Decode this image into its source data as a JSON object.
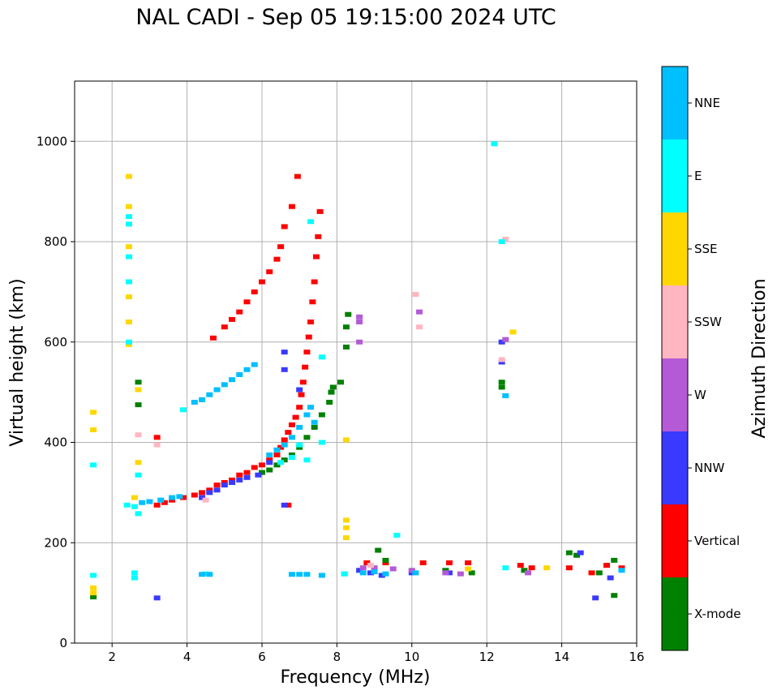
{
  "chart_data": {
    "type": "scatter",
    "title": "NAL CADI - Sep 05 19:15:00 2024 UTC",
    "xlabel": "Frequency (MHz)",
    "ylabel": "Virtual height (km)",
    "xlim": [
      1,
      16
    ],
    "ylim": [
      0,
      1120
    ],
    "xticks": [
      2,
      4,
      6,
      8,
      10,
      12,
      14,
      16
    ],
    "yticks": [
      0,
      200,
      400,
      600,
      800,
      1000
    ],
    "grid": true,
    "colorbar": {
      "label": "Azimuth Direction",
      "categories": [
        {
          "name": "X-mode",
          "color": "#008000"
        },
        {
          "name": "Vertical",
          "color": "#ff0000"
        },
        {
          "name": "NNW",
          "color": "#3a3aff"
        },
        {
          "name": "W",
          "color": "#b45ad6"
        },
        {
          "name": "SSW",
          "color": "#ffb6c1"
        },
        {
          "name": "SSE",
          "color": "#ffd700"
        },
        {
          "name": "E",
          "color": "#00ffff"
        },
        {
          "name": "NNE",
          "color": "#00bfff"
        }
      ]
    },
    "series": [
      {
        "name": "Vertical",
        "points": [
          [
            3.2,
            275
          ],
          [
            3.4,
            280
          ],
          [
            3.6,
            285
          ],
          [
            3.9,
            290
          ],
          [
            4.2,
            295
          ],
          [
            4.4,
            300
          ],
          [
            4.6,
            305
          ],
          [
            4.8,
            315
          ],
          [
            5.0,
            320
          ],
          [
            5.2,
            325
          ],
          [
            5.4,
            335
          ],
          [
            5.6,
            340
          ],
          [
            5.8,
            350
          ],
          [
            6.0,
            355
          ],
          [
            6.2,
            365
          ],
          [
            6.4,
            375
          ],
          [
            6.5,
            390
          ],
          [
            6.6,
            405
          ],
          [
            6.7,
            420
          ],
          [
            6.8,
            435
          ],
          [
            6.9,
            450
          ],
          [
            7.0,
            470
          ],
          [
            7.05,
            495
          ],
          [
            7.1,
            520
          ],
          [
            7.15,
            550
          ],
          [
            7.2,
            580
          ],
          [
            7.25,
            610
          ],
          [
            7.3,
            640
          ],
          [
            7.35,
            680
          ],
          [
            7.4,
            720
          ],
          [
            7.45,
            770
          ],
          [
            7.5,
            810
          ],
          [
            7.55,
            860
          ],
          [
            5.0,
            630
          ],
          [
            5.2,
            645
          ],
          [
            5.4,
            660
          ],
          [
            5.6,
            680
          ],
          [
            5.8,
            700
          ],
          [
            6.0,
            720
          ],
          [
            6.2,
            740
          ],
          [
            6.4,
            765
          ],
          [
            6.5,
            790
          ],
          [
            6.6,
            830
          ],
          [
            6.8,
            870
          ],
          [
            6.95,
            930
          ],
          [
            4.7,
            608
          ],
          [
            6.7,
            275
          ],
          [
            8.8,
            160
          ],
          [
            9.3,
            160
          ],
          [
            10.3,
            160
          ],
          [
            11.0,
            160
          ],
          [
            11.5,
            160
          ],
          [
            12.9,
            155
          ],
          [
            13.2,
            150
          ],
          [
            14.2,
            150
          ],
          [
            14.8,
            140
          ],
          [
            15.2,
            155
          ],
          [
            15.6,
            150
          ],
          [
            3.2,
            410
          ]
        ]
      },
      {
        "name": "X-mode",
        "points": [
          [
            6.0,
            340
          ],
          [
            6.2,
            345
          ],
          [
            6.4,
            355
          ],
          [
            6.6,
            365
          ],
          [
            6.8,
            375
          ],
          [
            7.0,
            390
          ],
          [
            7.2,
            410
          ],
          [
            7.4,
            430
          ],
          [
            7.6,
            455
          ],
          [
            7.8,
            480
          ],
          [
            7.85,
            500
          ],
          [
            7.9,
            510
          ],
          [
            8.1,
            520
          ],
          [
            8.3,
            655
          ],
          [
            8.25,
            630
          ],
          [
            8.25,
            590
          ],
          [
            9.1,
            185
          ],
          [
            9.3,
            165
          ],
          [
            2.7,
            520
          ],
          [
            2.7,
            475
          ],
          [
            1.5,
            92
          ],
          [
            12.4,
            520
          ],
          [
            12.4,
            510
          ],
          [
            14.2,
            180
          ],
          [
            14.4,
            175
          ],
          [
            15.4,
            165
          ],
          [
            15.4,
            95
          ],
          [
            15.0,
            140
          ],
          [
            13.0,
            145
          ],
          [
            11.6,
            140
          ],
          [
            10.9,
            145
          ]
        ]
      },
      {
        "name": "NNW",
        "points": [
          [
            4.4,
            290
          ],
          [
            4.6,
            300
          ],
          [
            4.8,
            305
          ],
          [
            5.0,
            315
          ],
          [
            5.2,
            320
          ],
          [
            5.4,
            325
          ],
          [
            5.6,
            330
          ],
          [
            5.9,
            335
          ],
          [
            6.2,
            360
          ],
          [
            6.6,
            580
          ],
          [
            6.6,
            545
          ],
          [
            6.6,
            275
          ],
          [
            7.0,
            505
          ],
          [
            8.6,
            145
          ],
          [
            8.9,
            140
          ],
          [
            9.2,
            135
          ],
          [
            10.0,
            140
          ],
          [
            11.0,
            140
          ],
          [
            12.4,
            600
          ],
          [
            12.4,
            560
          ],
          [
            14.5,
            180
          ],
          [
            14.9,
            90
          ],
          [
            15.3,
            130
          ],
          [
            3.2,
            90
          ]
        ]
      },
      {
        "name": "W",
        "points": [
          [
            8.6,
            650
          ],
          [
            8.6,
            640
          ],
          [
            8.6,
            600
          ],
          [
            8.2,
            138
          ],
          [
            8.7,
            150
          ],
          [
            9.0,
            150
          ],
          [
            9.5,
            148
          ],
          [
            10.0,
            145
          ],
          [
            10.9,
            140
          ],
          [
            11.3,
            138
          ],
          [
            13.1,
            140
          ],
          [
            12.5,
            605
          ],
          [
            10.2,
            660
          ]
        ]
      },
      {
        "name": "SSW",
        "points": [
          [
            10.1,
            695
          ],
          [
            10.2,
            630
          ],
          [
            12.5,
            805
          ],
          [
            12.4,
            565
          ],
          [
            4.5,
            285
          ],
          [
            2.7,
            415
          ],
          [
            8.9,
            155
          ],
          [
            3.2,
            395
          ]
        ]
      },
      {
        "name": "SSE",
        "points": [
          [
            2.45,
            595
          ],
          [
            2.45,
            640
          ],
          [
            2.45,
            690
          ],
          [
            2.45,
            790
          ],
          [
            2.45,
            870
          ],
          [
            2.45,
            930
          ],
          [
            2.6,
            290
          ],
          [
            1.5,
            100
          ],
          [
            1.5,
            110
          ],
          [
            1.5,
            460
          ],
          [
            1.5,
            425
          ],
          [
            8.25,
            405
          ],
          [
            8.25,
            245
          ],
          [
            8.25,
            230
          ],
          [
            8.25,
            210
          ],
          [
            12.7,
            620
          ],
          [
            11.5,
            148
          ],
          [
            13.6,
            150
          ],
          [
            2.7,
            505
          ],
          [
            2.7,
            360
          ]
        ]
      },
      {
        "name": "E",
        "points": [
          [
            2.45,
            600
          ],
          [
            2.45,
            720
          ],
          [
            2.45,
            770
          ],
          [
            2.45,
            835
          ],
          [
            2.45,
            850
          ],
          [
            2.4,
            275
          ],
          [
            2.6,
            272
          ],
          [
            2.7,
            258
          ],
          [
            6.5,
            360
          ],
          [
            6.8,
            370
          ],
          [
            7.0,
            395
          ],
          [
            7.2,
            365
          ],
          [
            7.3,
            840
          ],
          [
            7.6,
            400
          ],
          [
            7.6,
            570
          ],
          [
            3.9,
            465
          ],
          [
            1.5,
            355
          ],
          [
            1.5,
            135
          ],
          [
            2.7,
            335
          ],
          [
            9.6,
            215
          ],
          [
            12.2,
            995
          ],
          [
            12.4,
            800
          ],
          [
            2.6,
            140
          ],
          [
            2.6,
            130
          ],
          [
            4.5,
            138
          ],
          [
            8.2,
            138
          ],
          [
            12.5,
            150
          ]
        ]
      },
      {
        "name": "NNE",
        "points": [
          [
            2.8,
            280
          ],
          [
            3.0,
            282
          ],
          [
            3.3,
            285
          ],
          [
            3.6,
            290
          ],
          [
            3.8,
            292
          ],
          [
            4.2,
            480
          ],
          [
            4.4,
            485
          ],
          [
            4.6,
            495
          ],
          [
            4.8,
            505
          ],
          [
            5.0,
            515
          ],
          [
            5.2,
            525
          ],
          [
            5.4,
            535
          ],
          [
            5.6,
            545
          ],
          [
            5.8,
            555
          ],
          [
            6.2,
            375
          ],
          [
            6.4,
            385
          ],
          [
            6.6,
            395
          ],
          [
            6.8,
            410
          ],
          [
            7.0,
            430
          ],
          [
            7.2,
            455
          ],
          [
            7.3,
            470
          ],
          [
            7.4,
            440
          ],
          [
            4.4,
            137
          ],
          [
            4.6,
            137
          ],
          [
            6.8,
            137
          ],
          [
            7.0,
            137
          ],
          [
            7.2,
            137
          ],
          [
            7.6,
            135
          ],
          [
            8.7,
            140
          ],
          [
            9.0,
            142
          ],
          [
            9.3,
            138
          ],
          [
            10.1,
            140
          ],
          [
            12.5,
            493
          ],
          [
            15.6,
            145
          ]
        ]
      }
    ]
  }
}
